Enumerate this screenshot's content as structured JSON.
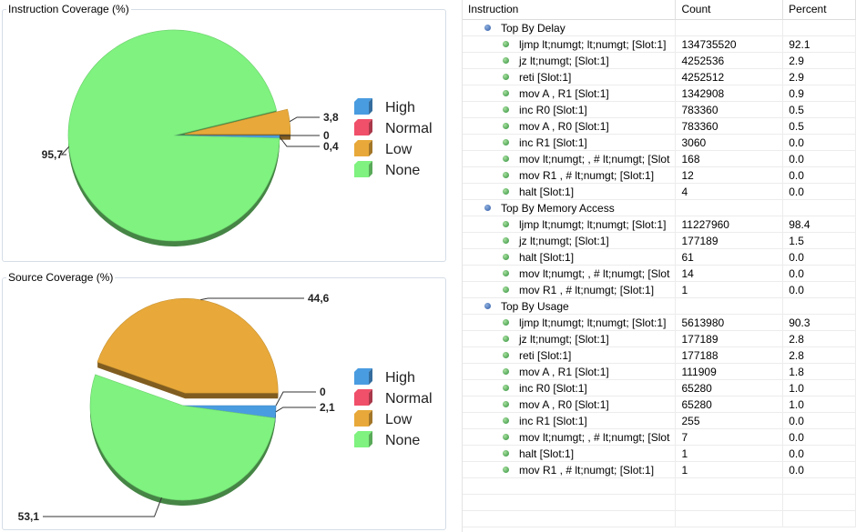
{
  "chart_data": [
    {
      "type": "pie",
      "title": "Instruction Coverage (%)",
      "categories": [
        "High",
        "Normal",
        "Low",
        "None"
      ],
      "values": [
        0.4,
        0,
        3.8,
        95.7
      ],
      "value_labels": [
        "0,4",
        "0",
        "3,8",
        "95,7"
      ],
      "colors": [
        "#4a9ce0",
        "#f0506a",
        "#e8a93a",
        "#7ff27f"
      ],
      "legend": "right",
      "exploded": "Low"
    },
    {
      "type": "pie",
      "title": "Source Coverage (%)",
      "categories": [
        "High",
        "Normal",
        "Low",
        "None"
      ],
      "values": [
        2.1,
        0,
        44.6,
        53.1
      ],
      "value_labels": [
        "2,1",
        "0",
        "44,6",
        "53,1"
      ],
      "colors": [
        "#4a9ce0",
        "#f0506a",
        "#e8a93a",
        "#7ff27f"
      ],
      "legend": "right",
      "exploded": "Low"
    }
  ],
  "table": {
    "headers": [
      "Instruction",
      "Count",
      "Percent"
    ],
    "groups": [
      {
        "name": "Top By Delay",
        "rows": [
          {
            "name": "ljmp lt;numgt; lt;numgt;  [Slot:1]",
            "count": "134735520",
            "percent": "92.1"
          },
          {
            "name": "jz lt;numgt;  [Slot:1]",
            "count": "4252536",
            "percent": "2.9"
          },
          {
            "name": "reti  [Slot:1]",
            "count": "4252512",
            "percent": "2.9"
          },
          {
            "name": "mov A , R1  [Slot:1]",
            "count": "1342908",
            "percent": "0.9"
          },
          {
            "name": "inc R0  [Slot:1]",
            "count": "783360",
            "percent": "0.5"
          },
          {
            "name": "mov A , R0  [Slot:1]",
            "count": "783360",
            "percent": "0.5"
          },
          {
            "name": "inc R1  [Slot:1]",
            "count": "3060",
            "percent": "0.0"
          },
          {
            "name": "mov lt;numgt; , # lt;numgt;  [Slot",
            "count": "168",
            "percent": "0.0"
          },
          {
            "name": "mov R1 , # lt;numgt;  [Slot:1]",
            "count": "12",
            "percent": "0.0"
          },
          {
            "name": "halt  [Slot:1]",
            "count": "4",
            "percent": "0.0"
          }
        ]
      },
      {
        "name": "Top By Memory Access",
        "rows": [
          {
            "name": "ljmp lt;numgt; lt;numgt;  [Slot:1]",
            "count": "11227960",
            "percent": "98.4"
          },
          {
            "name": "jz lt;numgt;  [Slot:1]",
            "count": "177189",
            "percent": "1.5"
          },
          {
            "name": "halt  [Slot:1]",
            "count": "61",
            "percent": "0.0"
          },
          {
            "name": "mov lt;numgt; , # lt;numgt;  [Slot",
            "count": "14",
            "percent": "0.0"
          },
          {
            "name": "mov R1 , # lt;numgt;  [Slot:1]",
            "count": "1",
            "percent": "0.0"
          }
        ]
      },
      {
        "name": "Top By Usage",
        "rows": [
          {
            "name": "ljmp lt;numgt; lt;numgt;  [Slot:1]",
            "count": "5613980",
            "percent": "90.3"
          },
          {
            "name": "jz lt;numgt;  [Slot:1]",
            "count": "177189",
            "percent": "2.8"
          },
          {
            "name": "reti  [Slot:1]",
            "count": "177188",
            "percent": "2.8"
          },
          {
            "name": "mov A , R1  [Slot:1]",
            "count": "111909",
            "percent": "1.8"
          },
          {
            "name": "inc R0  [Slot:1]",
            "count": "65280",
            "percent": "1.0"
          },
          {
            "name": "mov A , R0  [Slot:1]",
            "count": "65280",
            "percent": "1.0"
          },
          {
            "name": "inc R1  [Slot:1]",
            "count": "255",
            "percent": "0.0"
          },
          {
            "name": "mov lt;numgt; , # lt;numgt;  [Slot",
            "count": "7",
            "percent": "0.0"
          },
          {
            "name": "halt  [Slot:1]",
            "count": "1",
            "percent": "0.0"
          },
          {
            "name": "mov R1 , # lt;numgt;  [Slot:1]",
            "count": "1",
            "percent": "0.0"
          }
        ]
      }
    ]
  }
}
